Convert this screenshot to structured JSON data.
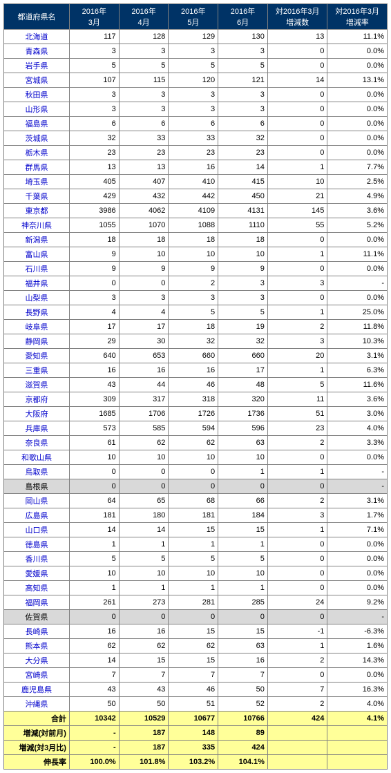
{
  "headers": [
    "都道府県名",
    "2016年\n3月",
    "2016年\n4月",
    "2016年\n5月",
    "2016年\n6月",
    "対2016年3月\n増減数",
    "対2016年3月\n増減率"
  ],
  "rows": [
    {
      "pref": "北海道",
      "v": [
        "117",
        "128",
        "129",
        "130",
        "13",
        "11.1%"
      ],
      "zero": false
    },
    {
      "pref": "青森県",
      "v": [
        "3",
        "3",
        "3",
        "3",
        "0",
        "0.0%"
      ],
      "zero": false
    },
    {
      "pref": "岩手県",
      "v": [
        "5",
        "5",
        "5",
        "5",
        "0",
        "0.0%"
      ],
      "zero": false
    },
    {
      "pref": "宮城県",
      "v": [
        "107",
        "115",
        "120",
        "121",
        "14",
        "13.1%"
      ],
      "zero": false
    },
    {
      "pref": "秋田県",
      "v": [
        "3",
        "3",
        "3",
        "3",
        "0",
        "0.0%"
      ],
      "zero": false
    },
    {
      "pref": "山形県",
      "v": [
        "3",
        "3",
        "3",
        "3",
        "0",
        "0.0%"
      ],
      "zero": false
    },
    {
      "pref": "福島県",
      "v": [
        "6",
        "6",
        "6",
        "6",
        "0",
        "0.0%"
      ],
      "zero": false
    },
    {
      "pref": "茨城県",
      "v": [
        "32",
        "33",
        "33",
        "32",
        "0",
        "0.0%"
      ],
      "zero": false
    },
    {
      "pref": "栃木県",
      "v": [
        "23",
        "23",
        "23",
        "23",
        "0",
        "0.0%"
      ],
      "zero": false
    },
    {
      "pref": "群馬県",
      "v": [
        "13",
        "13",
        "16",
        "14",
        "1",
        "7.7%"
      ],
      "zero": false
    },
    {
      "pref": "埼玉県",
      "v": [
        "405",
        "407",
        "410",
        "415",
        "10",
        "2.5%"
      ],
      "zero": false
    },
    {
      "pref": "千葉県",
      "v": [
        "429",
        "432",
        "442",
        "450",
        "21",
        "4.9%"
      ],
      "zero": false
    },
    {
      "pref": "東京都",
      "v": [
        "3986",
        "4062",
        "4109",
        "4131",
        "145",
        "3.6%"
      ],
      "zero": false
    },
    {
      "pref": "神奈川県",
      "v": [
        "1055",
        "1070",
        "1088",
        "1110",
        "55",
        "5.2%"
      ],
      "zero": false
    },
    {
      "pref": "新潟県",
      "v": [
        "18",
        "18",
        "18",
        "18",
        "0",
        "0.0%"
      ],
      "zero": false
    },
    {
      "pref": "富山県",
      "v": [
        "9",
        "10",
        "10",
        "10",
        "1",
        "11.1%"
      ],
      "zero": false
    },
    {
      "pref": "石川県",
      "v": [
        "9",
        "9",
        "9",
        "9",
        "0",
        "0.0%"
      ],
      "zero": false
    },
    {
      "pref": "福井県",
      "v": [
        "0",
        "0",
        "2",
        "3",
        "3",
        "-"
      ],
      "zero": false
    },
    {
      "pref": "山梨県",
      "v": [
        "3",
        "3",
        "3",
        "3",
        "0",
        "0.0%"
      ],
      "zero": false
    },
    {
      "pref": "長野県",
      "v": [
        "4",
        "4",
        "5",
        "5",
        "1",
        "25.0%"
      ],
      "zero": false
    },
    {
      "pref": "岐阜県",
      "v": [
        "17",
        "17",
        "18",
        "19",
        "2",
        "11.8%"
      ],
      "zero": false
    },
    {
      "pref": "静岡県",
      "v": [
        "29",
        "30",
        "32",
        "32",
        "3",
        "10.3%"
      ],
      "zero": false
    },
    {
      "pref": "愛知県",
      "v": [
        "640",
        "653",
        "660",
        "660",
        "20",
        "3.1%"
      ],
      "zero": false
    },
    {
      "pref": "三重県",
      "v": [
        "16",
        "16",
        "16",
        "17",
        "1",
        "6.3%"
      ],
      "zero": false
    },
    {
      "pref": "滋賀県",
      "v": [
        "43",
        "44",
        "46",
        "48",
        "5",
        "11.6%"
      ],
      "zero": false
    },
    {
      "pref": "京都府",
      "v": [
        "309",
        "317",
        "318",
        "320",
        "11",
        "3.6%"
      ],
      "zero": false
    },
    {
      "pref": "大阪府",
      "v": [
        "1685",
        "1706",
        "1726",
        "1736",
        "51",
        "3.0%"
      ],
      "zero": false
    },
    {
      "pref": "兵庫県",
      "v": [
        "573",
        "585",
        "594",
        "596",
        "23",
        "4.0%"
      ],
      "zero": false
    },
    {
      "pref": "奈良県",
      "v": [
        "61",
        "62",
        "62",
        "63",
        "2",
        "3.3%"
      ],
      "zero": false
    },
    {
      "pref": "和歌山県",
      "v": [
        "10",
        "10",
        "10",
        "10",
        "0",
        "0.0%"
      ],
      "zero": false
    },
    {
      "pref": "鳥取県",
      "v": [
        "0",
        "0",
        "0",
        "1",
        "1",
        "-"
      ],
      "zero": false
    },
    {
      "pref": "島根県",
      "v": [
        "0",
        "0",
        "0",
        "0",
        "0",
        "-"
      ],
      "zero": true
    },
    {
      "pref": "岡山県",
      "v": [
        "64",
        "65",
        "68",
        "66",
        "2",
        "3.1%"
      ],
      "zero": false
    },
    {
      "pref": "広島県",
      "v": [
        "181",
        "180",
        "181",
        "184",
        "3",
        "1.7%"
      ],
      "zero": false
    },
    {
      "pref": "山口県",
      "v": [
        "14",
        "14",
        "15",
        "15",
        "1",
        "7.1%"
      ],
      "zero": false
    },
    {
      "pref": "徳島県",
      "v": [
        "1",
        "1",
        "1",
        "1",
        "0",
        "0.0%"
      ],
      "zero": false
    },
    {
      "pref": "香川県",
      "v": [
        "5",
        "5",
        "5",
        "5",
        "0",
        "0.0%"
      ],
      "zero": false
    },
    {
      "pref": "愛媛県",
      "v": [
        "10",
        "10",
        "10",
        "10",
        "0",
        "0.0%"
      ],
      "zero": false
    },
    {
      "pref": "高知県",
      "v": [
        "1",
        "1",
        "1",
        "1",
        "0",
        "0.0%"
      ],
      "zero": false
    },
    {
      "pref": "福岡県",
      "v": [
        "261",
        "273",
        "281",
        "285",
        "24",
        "9.2%"
      ],
      "zero": false
    },
    {
      "pref": "佐賀県",
      "v": [
        "0",
        "0",
        "0",
        "0",
        "0",
        "-"
      ],
      "zero": true
    },
    {
      "pref": "長崎県",
      "v": [
        "16",
        "16",
        "15",
        "15",
        "-1",
        "-6.3%"
      ],
      "zero": false
    },
    {
      "pref": "熊本県",
      "v": [
        "62",
        "62",
        "62",
        "63",
        "1",
        "1.6%"
      ],
      "zero": false
    },
    {
      "pref": "大分県",
      "v": [
        "14",
        "15",
        "15",
        "16",
        "2",
        "14.3%"
      ],
      "zero": false
    },
    {
      "pref": "宮崎県",
      "v": [
        "7",
        "7",
        "7",
        "7",
        "0",
        "0.0%"
      ],
      "zero": false
    },
    {
      "pref": "鹿児島県",
      "v": [
        "43",
        "43",
        "46",
        "50",
        "7",
        "16.3%"
      ],
      "zero": false
    },
    {
      "pref": "沖縄県",
      "v": [
        "50",
        "50",
        "51",
        "52",
        "2",
        "4.0%"
      ],
      "zero": false
    }
  ],
  "summary": [
    {
      "label": "合計",
      "v": [
        "10342",
        "10529",
        "10677",
        "10766",
        "424",
        "4.1%"
      ]
    },
    {
      "label": "増減(対前月)",
      "v": [
        "-",
        "187",
        "148",
        "89",
        "",
        ""
      ]
    },
    {
      "label": "増減(対3月比)",
      "v": [
        "-",
        "187",
        "335",
        "424",
        "",
        ""
      ]
    },
    {
      "label": "伸長率",
      "v": [
        "100.0%",
        "101.8%",
        "103.2%",
        "104.1%",
        "",
        ""
      ]
    }
  ]
}
